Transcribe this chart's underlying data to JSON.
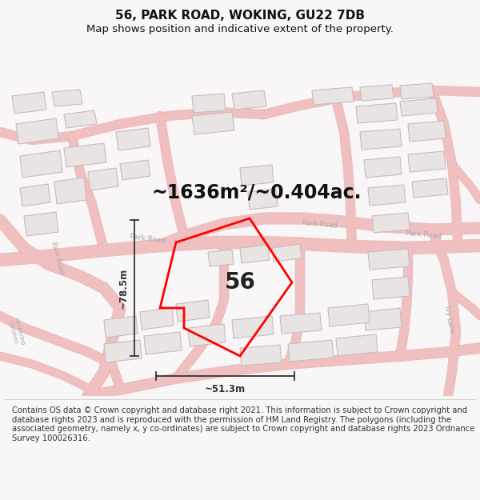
{
  "title": "56, PARK ROAD, WOKING, GU22 7DB",
  "subtitle": "Map shows position and indicative extent of the property.",
  "area_text": "~1636m²/~0.404ac.",
  "number_label": "56",
  "width_label": "~51.3m",
  "height_label": "~78.5m",
  "footer": "Contains OS data © Crown copyright and database right 2021. This information is subject to Crown copyright and database rights 2023 and is reproduced with the permission of HM Land Registry. The polygons (including the associated geometry, namely x, y co-ordinates) are subject to Crown copyright and database rights 2023 Ordnance Survey 100026316.",
  "title_fontsize": 11,
  "subtitle_fontsize": 9.5,
  "area_fontsize": 17,
  "number_fontsize": 20,
  "footer_fontsize": 7.2,
  "figsize": [
    6.0,
    6.25
  ],
  "dpi": 100,
  "map_xlim": [
    0,
    600
  ],
  "map_ylim": [
    0,
    440
  ],
  "road_color": "#f0c0c0",
  "road_outline_color": "#e89898",
  "building_fill": "#e8e4e4",
  "building_edge": "#c8bcbc",
  "plot_edge": "#ff0000",
  "road_label_color": "#b0a8a8",
  "dim_color": "#333333",
  "area_color": "#111111",
  "number_color": "#222222"
}
